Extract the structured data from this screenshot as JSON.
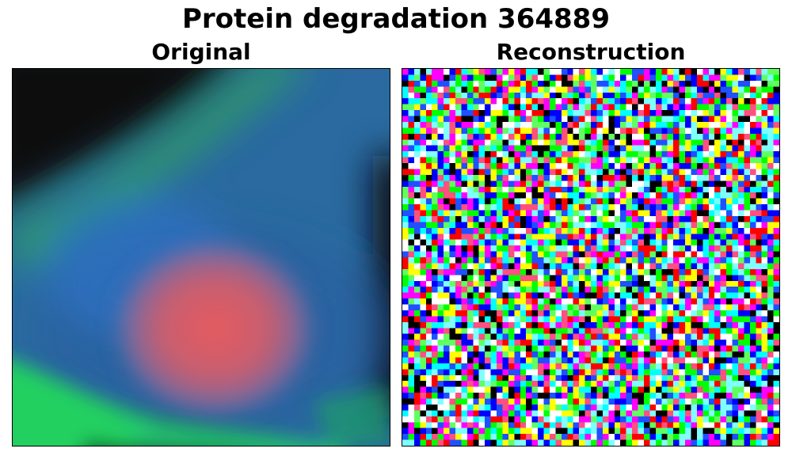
{
  "figure": {
    "title": "Protein degradation 364889"
  },
  "panels": [
    {
      "title": "Original"
    },
    {
      "title": "Reconstruction"
    }
  ]
}
